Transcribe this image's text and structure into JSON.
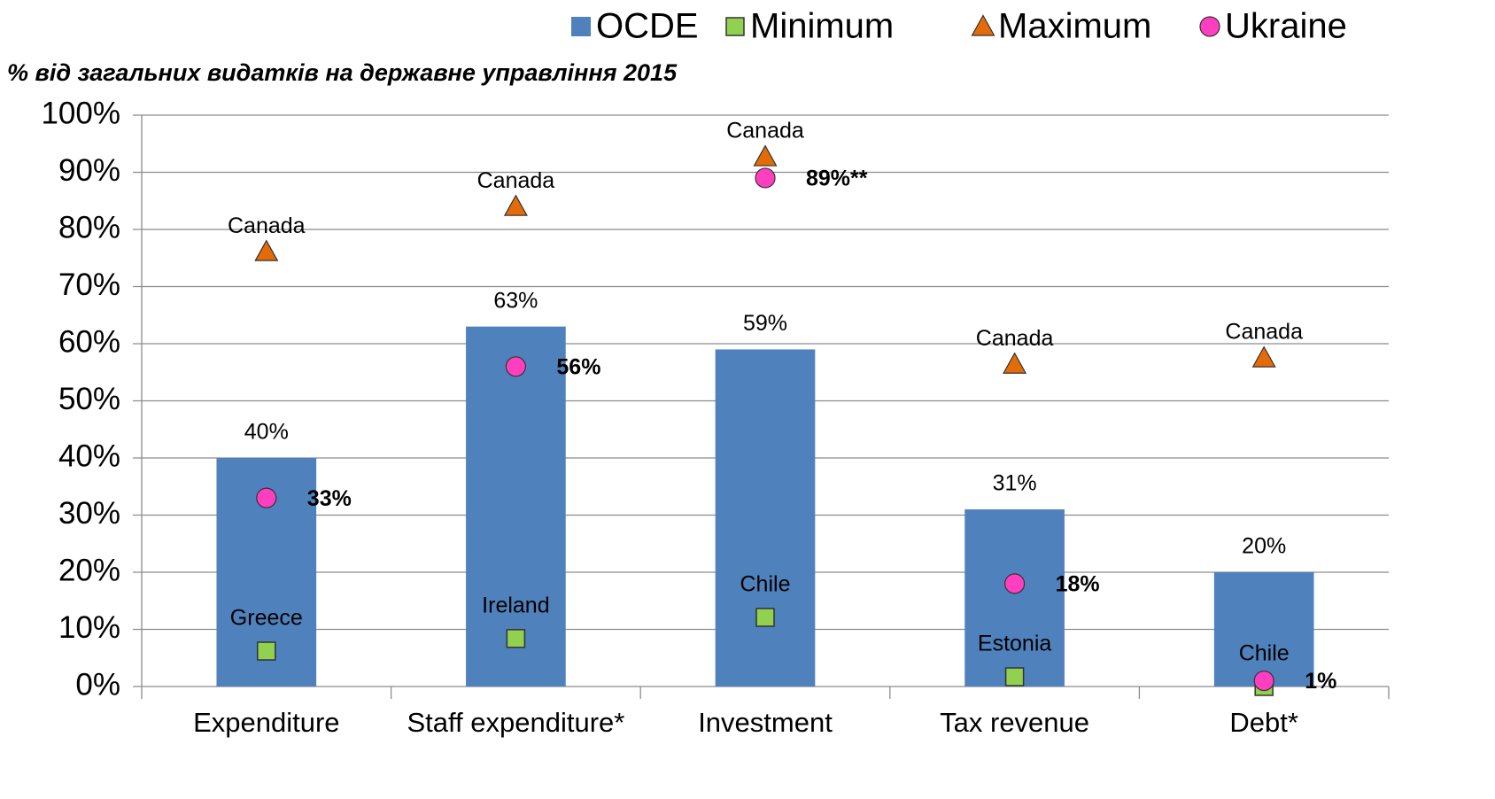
{
  "chart_data": {
    "type": "bar",
    "title": "% від загальних видатків на державне управління 2015",
    "categories": [
      "Expenditure",
      "Staff expenditure*",
      "Investment",
      "Tax revenue",
      "Debt*"
    ],
    "series": [
      {
        "name": "OCDE",
        "color": "#4f81bd",
        "values": [
          40,
          63,
          59,
          31,
          20
        ],
        "value_labels": [
          "40%",
          "63%",
          "59%",
          "31%",
          "20%"
        ]
      },
      {
        "name": "Minimum",
        "color": "#92d050",
        "marker": "square",
        "values": [
          6.2,
          8.4,
          12.1,
          1.7,
          0
        ],
        "point_labels": [
          "Greece",
          "Ireland",
          "Chile",
          "Estonia",
          "Chile"
        ]
      },
      {
        "name": "Maximum",
        "color": "#e36c09",
        "marker": "triangle",
        "values": [
          76.1,
          84,
          92.7,
          56.4,
          57.5
        ],
        "point_labels": [
          "Canada",
          "Canada",
          "Canada",
          "Canada",
          "Canada"
        ]
      },
      {
        "name": "Ukraine",
        "color": "#ff3fbf",
        "marker": "circle",
        "values": [
          33,
          56,
          89,
          18,
          1
        ],
        "value_labels": [
          "33%",
          "56%",
          "89%**",
          "18%",
          "1%"
        ]
      }
    ],
    "ylim": [
      0,
      100
    ],
    "yticks": [
      {
        "value": 0,
        "label": "0%"
      },
      {
        "value": 10,
        "label": "10%"
      },
      {
        "value": 20,
        "label": "20%"
      },
      {
        "value": 30,
        "label": "30%"
      },
      {
        "value": 40,
        "label": "40%"
      },
      {
        "value": 50,
        "label": "50%"
      },
      {
        "value": 60,
        "label": "60%"
      },
      {
        "value": 70,
        "label": "70%"
      },
      {
        "value": 80,
        "label": "80%"
      },
      {
        "value": 90,
        "label": "90%"
      },
      {
        "value": 100,
        "label": "100%"
      }
    ],
    "grid": true,
    "legend": "top-right"
  }
}
